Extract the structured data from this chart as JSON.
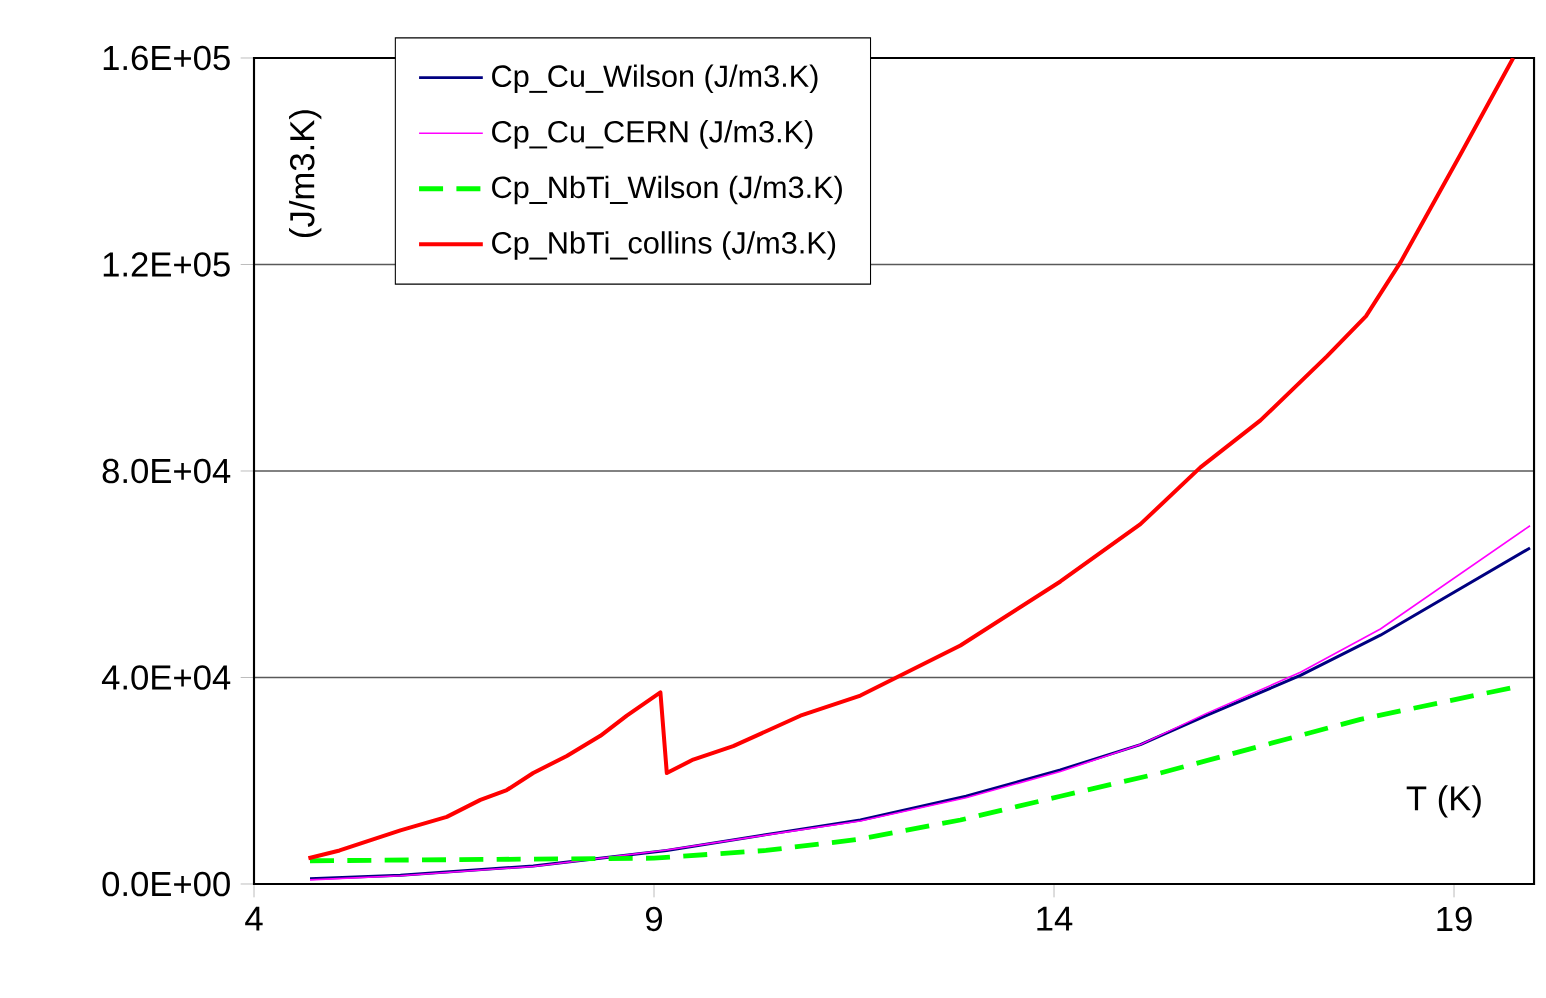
{
  "chart_data": {
    "type": "line",
    "xlabel": "T (K)",
    "ylabel": "(J/m3.K)",
    "xlim": [
      4,
      20
    ],
    "xticks": [
      4,
      9,
      14,
      19
    ],
    "ylim": [
      0,
      160000
    ],
    "yticks": [
      {
        "value": 0,
        "label": "0.0E+00"
      },
      {
        "value": 40000,
        "label": "4.0E+04"
      },
      {
        "value": 80000,
        "label": "8.0E+04"
      },
      {
        "value": 120000,
        "label": "1.2E+05"
      },
      {
        "value": 160000,
        "label": "1.6E+05"
      }
    ],
    "grid": "y",
    "legend": "top",
    "marker": "none",
    "series": [
      {
        "name": "Cp_Cu_Wilson (J/m3.K)",
        "color": "#000080",
        "line_style": "solid",
        "x": [
          4.7,
          5.83,
          7.49,
          9.16,
          10.58,
          11.58,
          12.9,
          14.08,
          15.08,
          15.9,
          17.08,
          18.08,
          19.95
        ],
        "values": [
          1000,
          1700,
          3500,
          6500,
          10000,
          12400,
          17000,
          22100,
          27000,
          32600,
          40400,
          48200,
          65100
        ]
      },
      {
        "name": "Cp_Cu_CERN (J/m3.K)",
        "color": "#ff00ff",
        "line_style": "solid",
        "x": [
          4.7,
          5.83,
          7.49,
          9.16,
          10.58,
          11.58,
          12.9,
          14.08,
          15.08,
          15.9,
          17.08,
          18.08,
          19.95
        ],
        "values": [
          800,
          1600,
          3400,
          6600,
          9900,
          12200,
          16700,
          21800,
          27000,
          33000,
          41000,
          49400,
          69400
        ]
      },
      {
        "name": "Cp_NbTi_Wilson (J/m3.K)",
        "color": "#00ff00",
        "line_style": "dashed",
        "x": [
          4.7,
          9.0,
          10.4,
          11.58,
          12.83,
          14.08,
          15.33,
          16.58,
          17.83,
          19.78
        ],
        "values": [
          4500,
          5000,
          6500,
          8700,
          12400,
          17000,
          21500,
          26700,
          31900,
          38200
        ]
      },
      {
        "name": "Cp_NbTi_collins (J/m3.K)",
        "color": "#ff0000",
        "line_style": "solid",
        "x": [
          4.68,
          5.07,
          5.83,
          6.41,
          6.83,
          7.16,
          7.49,
          7.91,
          8.33,
          8.66,
          9.08,
          9.16,
          9.49,
          9.99,
          10.83,
          11.58,
          12.83,
          14.08,
          15.08,
          15.83,
          16.58,
          17.41,
          17.9,
          18.33,
          19.08,
          19.74
        ],
        "values": [
          5000,
          6500,
          10400,
          13000,
          16300,
          18200,
          21500,
          24800,
          28700,
          32600,
          37100,
          21500,
          24100,
          26700,
          32600,
          36500,
          46200,
          58600,
          69700,
          80700,
          89800,
          102200,
          110000,
          120400,
          141300,
          160000
        ]
      }
    ]
  }
}
